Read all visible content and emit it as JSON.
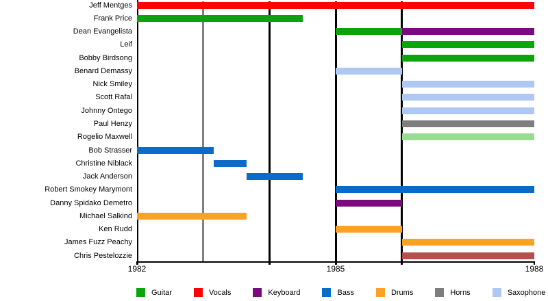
{
  "chart_data": {
    "type": "timeline-gantt",
    "title": "",
    "x_axis": {
      "range": [
        1982,
        1988
      ],
      "tick_years": [
        1982,
        1985,
        1988
      ],
      "tick_labels": [
        "1982",
        "1985",
        "1988"
      ],
      "grid": false
    },
    "instrument_colors": {
      "guitar": "#0CA40C",
      "vocals": "#FA0505",
      "keyboard": "#7B0A7E",
      "bass": "#0A6CC8",
      "drums": "#F9A226",
      "horns": "#7D7D7D",
      "saxophone": "#AFC7F3",
      "light_green": "#98DC90",
      "brick_red": "#B2504B"
    },
    "axis_colors": {
      "axis": "#000000",
      "event_gray": "#808080",
      "event_black": "#000000"
    },
    "members": [
      {
        "name": "Jeff Mentges",
        "bars": [
          {
            "color_key": "vocals",
            "start": 1982,
            "end": 1988
          }
        ]
      },
      {
        "name": "Frank Price",
        "bars": [
          {
            "color_key": "guitar",
            "start": 1982,
            "end": 1984.5
          }
        ]
      },
      {
        "name": "Dean Evangelista",
        "bars": [
          {
            "color_key": "guitar",
            "start": 1985,
            "end": 1986
          },
          {
            "color_key": "keyboard",
            "start": 1986,
            "end": 1988
          }
        ]
      },
      {
        "name": "Leif",
        "bars": [
          {
            "color_key": "guitar",
            "start": 1986,
            "end": 1988
          }
        ]
      },
      {
        "name": "Bobby Birdsong",
        "bars": [
          {
            "color_key": "guitar",
            "start": 1986,
            "end": 1988
          }
        ]
      },
      {
        "name": "Benard Demassy",
        "bars": [
          {
            "color_key": "saxophone",
            "start": 1985,
            "end": 1986
          }
        ]
      },
      {
        "name": "Nick Smiley",
        "bars": [
          {
            "color_key": "saxophone",
            "start": 1986,
            "end": 1988
          }
        ]
      },
      {
        "name": "Scott Rafal",
        "bars": [
          {
            "color_key": "saxophone",
            "start": 1986,
            "end": 1988
          }
        ]
      },
      {
        "name": "Johnny Ontego",
        "bars": [
          {
            "color_key": "saxophone",
            "start": 1986,
            "end": 1988
          }
        ]
      },
      {
        "name": "Paul Henzy",
        "bars": [
          {
            "color_key": "horns",
            "start": 1986,
            "end": 1988
          }
        ]
      },
      {
        "name": "Rogelio Maxwell",
        "bars": [
          {
            "color_key": "light_green",
            "start": 1986,
            "end": 1988
          }
        ]
      },
      {
        "name": "Bob Strasser",
        "bars": [
          {
            "color_key": "bass",
            "start": 1982,
            "end": 1983.16
          }
        ]
      },
      {
        "name": "Christine Niblack",
        "bars": [
          {
            "color_key": "bass",
            "start": 1983.16,
            "end": 1983.66
          }
        ]
      },
      {
        "name": "Jack Anderson",
        "bars": [
          {
            "color_key": "bass",
            "start": 1983.66,
            "end": 1984.5
          }
        ]
      },
      {
        "name": "Robert Smokey Marymont",
        "bars": [
          {
            "color_key": "bass",
            "start": 1985,
            "end": 1988
          }
        ]
      },
      {
        "name": "Danny Spidako Demetro",
        "bars": [
          {
            "color_key": "keyboard",
            "start": 1985,
            "end": 1986
          }
        ]
      },
      {
        "name": "Michael Salkind",
        "bars": [
          {
            "color_key": "drums",
            "start": 1982,
            "end": 1983.66
          }
        ]
      },
      {
        "name": "Ken Rudd",
        "bars": [
          {
            "color_key": "drums",
            "start": 1985,
            "end": 1986
          }
        ]
      },
      {
        "name": "James Fuzz Peachy",
        "bars": [
          {
            "color_key": "drums",
            "start": 1986,
            "end": 1988
          }
        ]
      },
      {
        "name": "Chris Pestelozzie",
        "bars": [
          {
            "color_key": "brick_red",
            "start": 1986,
            "end": 1988
          }
        ]
      }
    ],
    "event_lines": [
      {
        "year": 1983,
        "color": "#808080"
      },
      {
        "year": 1984,
        "color": "#000000"
      },
      {
        "year": 1985,
        "color": "#000000"
      },
      {
        "year": 1986,
        "color": "#000000"
      }
    ],
    "legend": [
      {
        "label": "Guitar",
        "color_key": "guitar"
      },
      {
        "label": "Vocals",
        "color_key": "vocals"
      },
      {
        "label": "Keyboard",
        "color_key": "keyboard"
      },
      {
        "label": "Bass",
        "color_key": "bass"
      },
      {
        "label": "Drums",
        "color_key": "drums"
      },
      {
        "label": "Horns",
        "color_key": "horns"
      },
      {
        "label": "Saxophone",
        "color_key": "saxophone"
      }
    ],
    "legend_position": "bottom"
  }
}
